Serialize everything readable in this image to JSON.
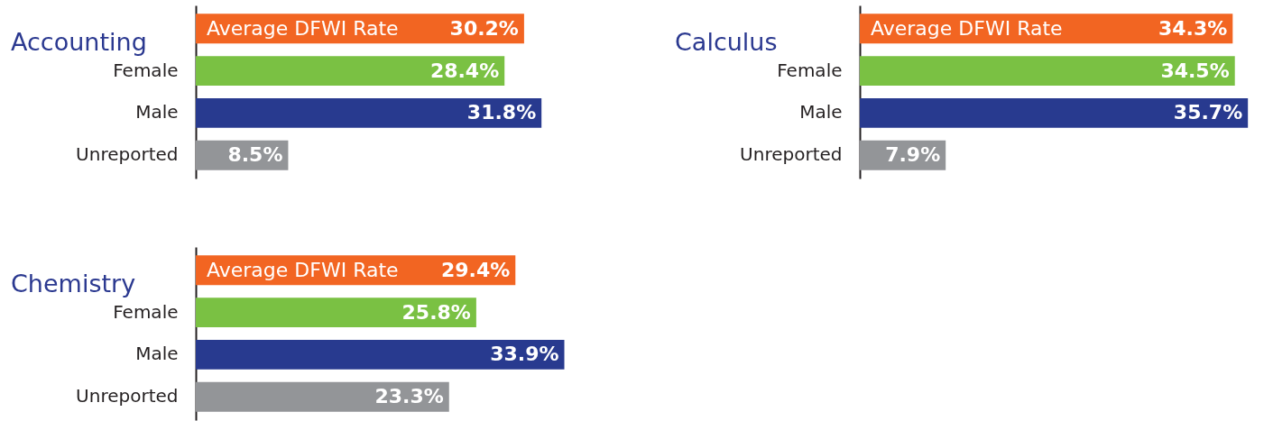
{
  "chart_data": [
    {
      "type": "bar",
      "orientation": "horizontal",
      "title": "Accounting",
      "categories": [
        "Average DFWI Rate",
        "Female",
        "Male",
        "Unreported"
      ],
      "values": [
        30.2,
        28.4,
        31.8,
        8.5
      ],
      "colors": [
        "#f26522",
        "#7ac143",
        "#283a8f",
        "#939598"
      ],
      "value_labels": [
        "30.2%",
        "28.4%",
        "31.8%",
        "8.5%"
      ]
    },
    {
      "type": "bar",
      "orientation": "horizontal",
      "title": "Calculus",
      "categories": [
        "Average DFWI Rate",
        "Female",
        "Male",
        "Unreported"
      ],
      "values": [
        34.3,
        34.5,
        35.7,
        7.9
      ],
      "colors": [
        "#f26522",
        "#7ac143",
        "#283a8f",
        "#939598"
      ],
      "value_labels": [
        "34.3%",
        "34.5%",
        "35.7%",
        "7.9%"
      ]
    },
    {
      "type": "bar",
      "orientation": "horizontal",
      "title": "Chemistry",
      "categories": [
        "Average DFWI Rate",
        "Female",
        "Male",
        "Unreported"
      ],
      "values": [
        29.4,
        25.8,
        33.9,
        23.3
      ],
      "colors": [
        "#f26522",
        "#7ac143",
        "#283a8f",
        "#939598"
      ],
      "value_labels": [
        "29.4%",
        "25.8%",
        "33.9%",
        "23.3%"
      ]
    }
  ]
}
